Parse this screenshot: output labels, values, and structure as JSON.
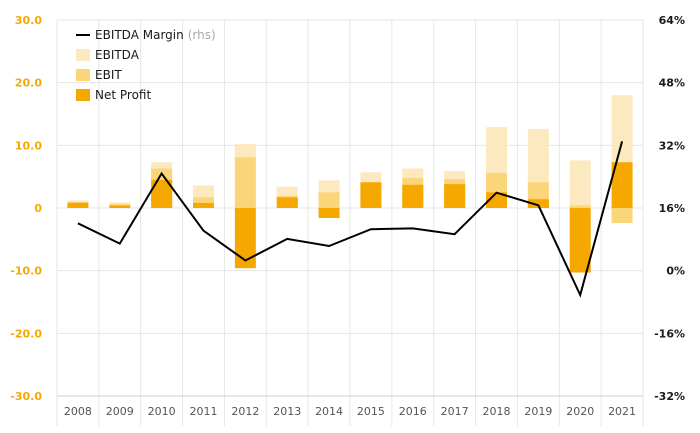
{
  "chart_data": {
    "type": "bar",
    "categories": [
      "2008",
      "2009",
      "2010",
      "2011",
      "2012",
      "2013",
      "2014",
      "2015",
      "2016",
      "2017",
      "2018",
      "2019",
      "2020",
      "2021"
    ],
    "series": [
      {
        "name": "EBITDA",
        "kind": "bar",
        "axis": "left",
        "color": "#fde9c0",
        "values": [
          1.2,
          0.9,
          7.3,
          3.6,
          10.2,
          3.4,
          4.4,
          5.7,
          6.3,
          5.9,
          12.9,
          12.6,
          7.6,
          18.0
        ]
      },
      {
        "name": "EBIT",
        "kind": "bar",
        "axis": "left",
        "color": "#fbd57a",
        "values": [
          1.0,
          0.6,
          6.3,
          1.7,
          8.1,
          1.9,
          2.5,
          4.1,
          4.8,
          4.6,
          5.6,
          4.1,
          0.4,
          -2.4
        ]
      },
      {
        "name": "Net Profit",
        "kind": "bar",
        "axis": "left",
        "color": "#f5a800",
        "values": [
          0.8,
          0.4,
          4.5,
          0.8,
          -9.6,
          1.7,
          -1.6,
          4.1,
          3.7,
          3.8,
          2.5,
          1.4,
          -10.3,
          7.3
        ]
      },
      {
        "name": "EBITDA Margin",
        "note": "(rhs)",
        "kind": "line",
        "axis": "right",
        "color": "#000000",
        "values": [
          12.1,
          6.9,
          24.8,
          10.2,
          2.6,
          8.1,
          6.3,
          10.6,
          10.8,
          9.3,
          19.9,
          16.7,
          -6.2,
          33.0
        ]
      }
    ],
    "y_left": {
      "min": -30,
      "max": 30,
      "ticks": [
        "30.0",
        "20.0",
        "10.0",
        "0",
        "-10.0",
        "-20.0",
        "-30.0"
      ]
    },
    "y_right": {
      "min": -32,
      "max": 64,
      "ticks": [
        "64%",
        "48%",
        "32%",
        "16%",
        "0%",
        "-16%",
        "-32%"
      ]
    },
    "grid": true,
    "legend_position": "top-left"
  },
  "colors": {
    "accent": "#f5a800",
    "line": "#000000"
  }
}
